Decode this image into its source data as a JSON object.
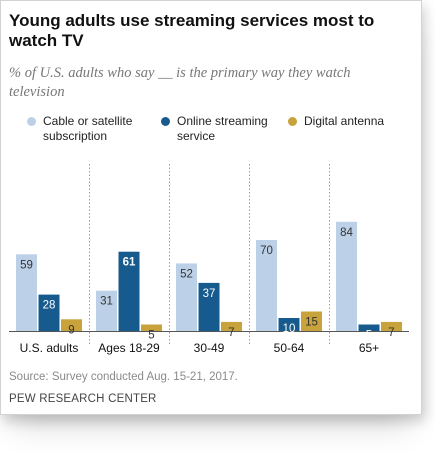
{
  "title": "Young adults use streaming services most to watch TV",
  "subtitle": "% of U.S. adults who say __ is the primary way they watch television",
  "source": "Source: Survey conducted Aug. 15-21, 2017.",
  "brand": "PEW RESEARCH CENTER",
  "chart_data": {
    "type": "bar",
    "categories": [
      "U.S. adults",
      "Ages 18-29",
      "30-49",
      "50-64",
      "65+"
    ],
    "series": [
      {
        "name": "Cable or satellite subscription",
        "color": "#bcd1e8",
        "values": [
          59,
          31,
          52,
          70,
          84
        ]
      },
      {
        "name": "Online streaming service",
        "color": "#175b8e",
        "values": [
          28,
          61,
          37,
          10,
          5
        ]
      },
      {
        "name": "Digital antenna",
        "color": "#c8a23a",
        "values": [
          9,
          5,
          7,
          15,
          7
        ]
      }
    ],
    "highlight": {
      "category": "Ages 18-29",
      "series": "Online streaming service"
    },
    "ylim": [
      0,
      100
    ],
    "grid": false,
    "legend": "top"
  }
}
